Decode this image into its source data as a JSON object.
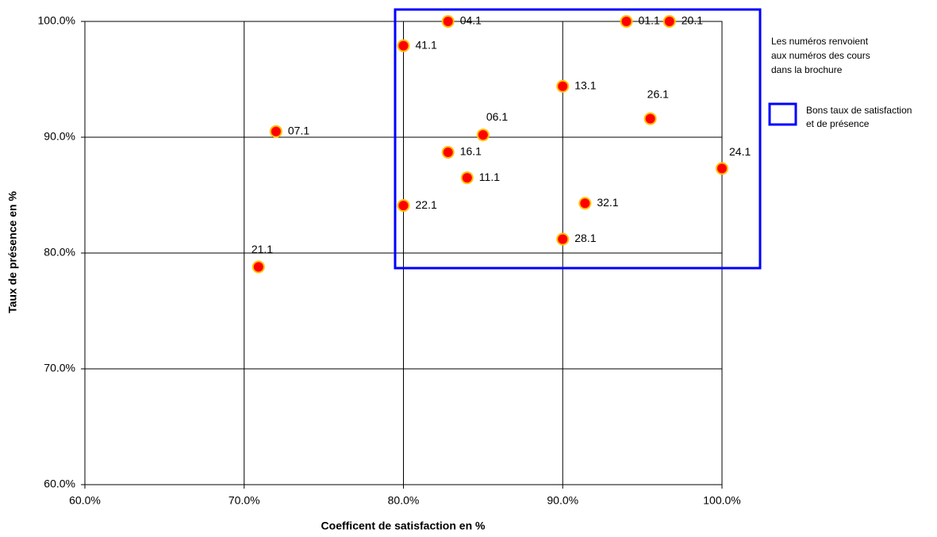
{
  "chart_data": {
    "type": "scatter",
    "xlabel": "Coefficent de satisfaction en %",
    "ylabel": "Taux de présence en %",
    "xlim": [
      60,
      100
    ],
    "ylim": [
      60,
      100
    ],
    "xticks": [
      {
        "value": 60,
        "label": "60.0%"
      },
      {
        "value": 70,
        "label": "70.0%"
      },
      {
        "value": 80,
        "label": "80.0%"
      },
      {
        "value": 90,
        "label": "90.0%"
      },
      {
        "value": 100,
        "label": "100.0%"
      }
    ],
    "yticks": [
      {
        "value": 60,
        "label": "60.0%"
      },
      {
        "value": 70,
        "label": "70.0%"
      },
      {
        "value": 80,
        "label": "80.0%"
      },
      {
        "value": 90,
        "label": "90.0%"
      },
      {
        "value": 100,
        "label": "100.0%"
      }
    ],
    "grid": true,
    "color": "#ff0000",
    "edge_color": "#ffc000",
    "x": [
      82.8,
      94.0,
      96.7,
      80.0,
      90.0,
      95.5,
      72.0,
      85.0,
      82.8,
      100.0,
      84.0,
      91.4,
      80.0,
      90.0,
      70.9
    ],
    "values": [
      100.0,
      100.0,
      100.0,
      97.9,
      94.4,
      91.6,
      90.5,
      90.2,
      88.7,
      87.3,
      86.5,
      84.3,
      84.1,
      81.2,
      78.8
    ],
    "point_labels": [
      "04.1",
      "01.1",
      "20.1",
      "41.1",
      "13.1",
      "26.1",
      "07.1",
      "06.1",
      "16.1",
      "24.1",
      "11.1",
      "32.1",
      "22.1",
      "28.1",
      "21.1"
    ],
    "annotation": [
      "Les numéros renvoient",
      "aux numéros des cours",
      "dans la brochure"
    ],
    "highlight_box": {
      "label": [
        "Bons taux de satisfaction",
        "et de présence"
      ],
      "color": "#0000ff"
    }
  }
}
